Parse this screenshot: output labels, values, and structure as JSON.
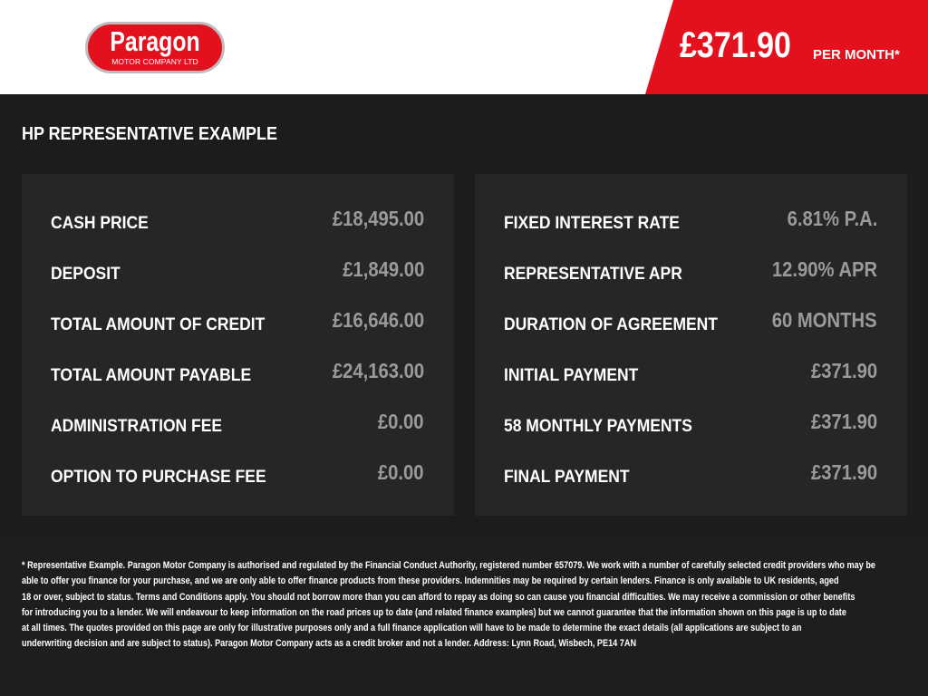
{
  "logo": {
    "name": "Paragon",
    "sub": "MOTOR COMPANY LTD"
  },
  "header": {
    "price": "£371.90",
    "per": "PER MONTH*"
  },
  "title": "HP REPRESENTATIVE EXAMPLE",
  "left": [
    {
      "label": "CASH PRICE",
      "value": "£18,495.00"
    },
    {
      "label": "DEPOSIT",
      "value": "£1,849.00"
    },
    {
      "label": "TOTAL AMOUNT OF CREDIT",
      "value": "£16,646.00"
    },
    {
      "label": "TOTAL AMOUNT PAYABLE",
      "value": "£24,163.00"
    },
    {
      "label": "ADMINISTRATION FEE",
      "value": "£0.00"
    },
    {
      "label": "OPTION TO PURCHASE FEE",
      "value": "£0.00"
    }
  ],
  "right": [
    {
      "label": "FIXED INTEREST RATE",
      "value": "6.81% P.A."
    },
    {
      "label": "REPRESENTATIVE APR",
      "value": "12.90% APR"
    },
    {
      "label": "DURATION OF AGREEMENT",
      "value": "60 MONTHS"
    },
    {
      "label": "INITIAL PAYMENT",
      "value": "£371.90"
    },
    {
      "label": "58 MONTHLY PAYMENTS",
      "value": "£371.90"
    },
    {
      "label": "FINAL PAYMENT",
      "value": "£371.90"
    }
  ],
  "disclaimer": [
    "* Representative Example. Paragon Motor Company is authorised and regulated by the Financial Conduct Authority, registered number 657079. We work with a number of carefully selected credit providers who may be",
    "able to offer you finance for your purchase, and we are only able to offer finance products from these providers. Indemnities may be required by certain lenders. Finance is only available to UK residents, aged",
    "18 or over, subject to status. Terms and Conditions apply. You should not borrow more than you can afford to repay as doing so can cause you financial difficulties. We may receive a commission or other benefits",
    "for introducing you to a lender. We will endeavour to keep information on the road prices up to date (and related finance examples) but we cannot guarantee that the information shown on this page is up to date",
    "at all times. The quotes provided on this page are only for illustrative purposes only and a full finance application will have to be made to determine the exact details (all applications are subject to an",
    "underwriting decision and are subject to status). Paragon Motor Company acts as a credit broker and not a lender. Address: Lynn Road, Wisbech, PE14 7AN"
  ],
  "colors": {
    "brand": "#e3101d",
    "background": "#1c1c1c",
    "panel": "#262626",
    "value": "#9a9a9a"
  }
}
